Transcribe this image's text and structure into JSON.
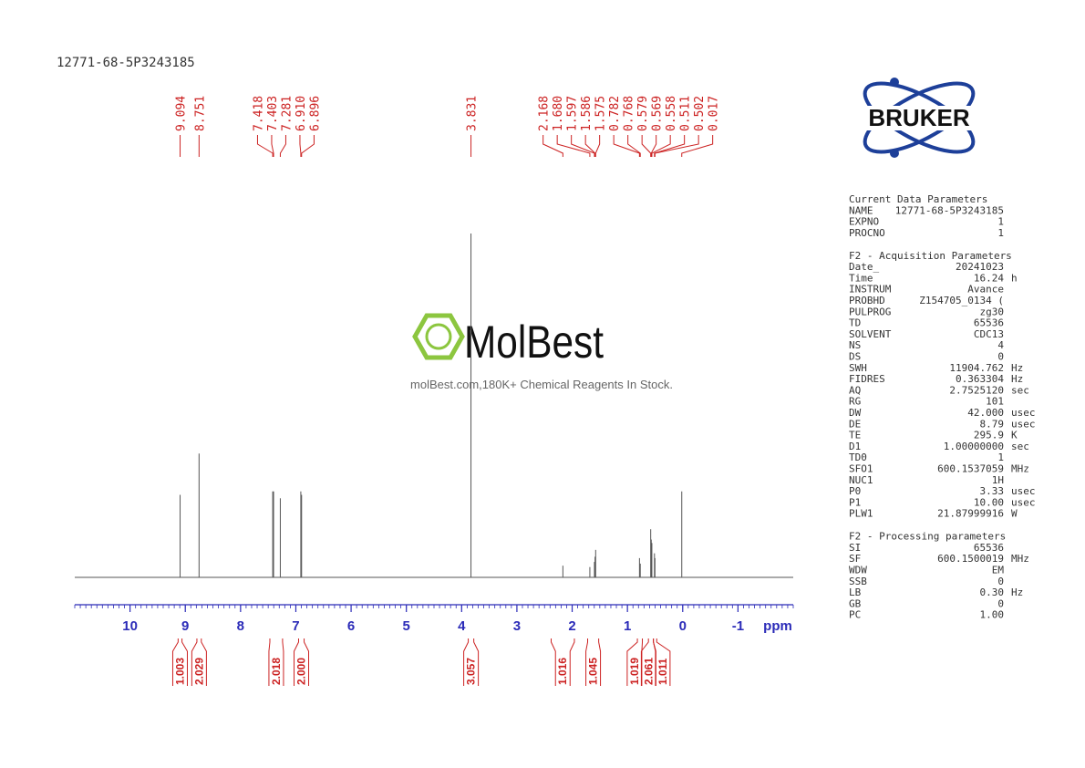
{
  "title": "12771-68-5P3243185",
  "logo": "BRUKER",
  "watermark": {
    "brand": "MolBest",
    "tagline": "molBest.com,180K+ Chemical Reagents In Stock."
  },
  "chart_data": {
    "type": "nmr",
    "x_label": "ppm",
    "xlim": [
      11,
      -2
    ],
    "xticks": [
      10,
      9,
      8,
      7,
      6,
      5,
      4,
      3,
      2,
      1,
      0,
      -1
    ],
    "minor_tick_interval": 0.1,
    "ylim": [
      0,
      100
    ],
    "color": "#555555",
    "axis_color": "#2b2bb8",
    "label_color": "#cc2222",
    "peaks": {
      "x": [
        9.094,
        8.751,
        7.418,
        7.403,
        7.281,
        {
          "value": 6.91,
          "label": "6.910"
        },
        6.896,
        3.831,
        2.168,
        {
          "value": 1.68,
          "label": "1.680"
        },
        1.597,
        1.586,
        1.575,
        0.782,
        0.768,
        0.579,
        0.569,
        0.558,
        0.511,
        0.502,
        0.017
      ],
      "values": [
        24,
        36,
        25,
        25,
        23,
        25,
        24,
        100,
        3.4,
        3,
        4.5,
        6,
        8,
        5.6,
        4,
        14,
        11,
        10,
        7,
        5.6,
        25
      ]
    },
    "integrals": {
      "ranges": [
        [
          9.13,
          9.06
        ],
        [
          8.79,
          8.71
        ],
        [
          7.47,
          7.24
        ],
        [
          6.95,
          6.85
        ],
        [
          3.88,
          3.78
        ],
        [
          2.38,
          1.96
        ],
        [
          1.72,
          1.52
        ],
        [
          0.82,
          0.73
        ],
        [
          0.62,
          0.53
        ],
        [
          0.53,
          0.47
        ]
      ],
      "values": [
        1.003,
        2.029,
        2.018,
        {
          "value": 2,
          "label": "2.000"
        },
        3.057,
        1.016,
        1.045,
        1.019,
        2.061,
        1.011
      ]
    }
  },
  "parameters": [
    {
      "title": "Current Data Parameters",
      "rows": [
        [
          "NAME",
          "12771-68-5P3243185"
        ],
        [
          "EXPNO",
          "1"
        ],
        [
          "PROCNO",
          "1"
        ]
      ]
    },
    {
      "title": "F2 - Acquisition Parameters",
      "rows": [
        [
          "Date_",
          "20241023"
        ],
        [
          "Time",
          "16.24",
          "h"
        ],
        [
          "INSTRUM",
          "Avance"
        ],
        [
          "PROBHD",
          "Z154705_0134 ("
        ],
        [
          "PULPROG",
          "zg30"
        ],
        [
          "TD",
          "65536"
        ],
        [
          "SOLVENT",
          "CDC13"
        ],
        [
          "NS",
          "4"
        ],
        [
          "DS",
          "0"
        ],
        [
          "SWH",
          "11904.762",
          "Hz"
        ],
        [
          "FIDRES",
          "0.363304",
          "Hz"
        ],
        [
          "AQ",
          "2.7525120",
          "sec"
        ],
        [
          "RG",
          "101"
        ],
        [
          "DW",
          "42.000",
          "usec"
        ],
        [
          "DE",
          "8.79",
          "usec"
        ],
        [
          "TE",
          "295.9",
          "K"
        ],
        [
          "D1",
          "1.00000000",
          "sec"
        ],
        [
          "TD0",
          "1"
        ],
        [
          "SFO1",
          "600.1537059",
          "MHz"
        ],
        [
          "NUC1",
          "1H"
        ],
        [
          "P0",
          "3.33",
          "usec"
        ],
        [
          "P1",
          "10.00",
          "usec"
        ],
        [
          "PLW1",
          "21.87999916",
          "W"
        ]
      ]
    },
    {
      "title": "F2 - Processing parameters",
      "rows": [
        [
          "SI",
          "65536"
        ],
        [
          "SF",
          "600.1500019",
          "MHz"
        ],
        [
          "WDW",
          "EM"
        ],
        [
          "SSB",
          "0"
        ],
        [
          "LB",
          "0.30",
          "Hz"
        ],
        [
          "GB",
          "0"
        ],
        [
          "PC",
          "1.00"
        ]
      ]
    }
  ]
}
